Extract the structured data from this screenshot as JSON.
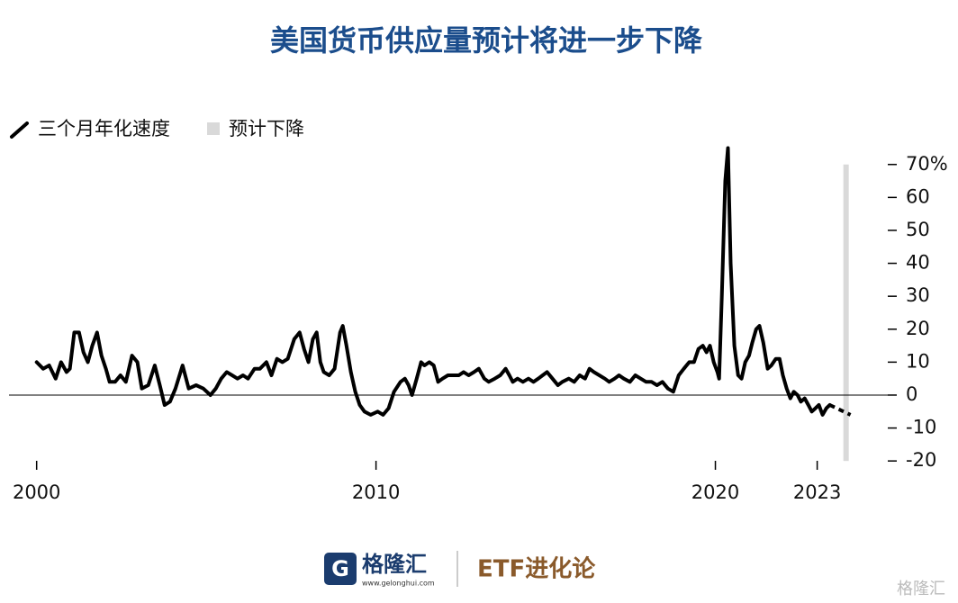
{
  "chart_data": {
    "type": "line",
    "title": "美国货币供应量预计将进一步下降",
    "series": [
      {
        "name": "三个月年化速度",
        "color": "#000000",
        "x": [
          2000.0,
          2000.19,
          2000.37,
          2000.56,
          2000.72,
          2000.88,
          2000.98,
          2001.11,
          2001.25,
          2001.38,
          2001.51,
          2001.64,
          2001.78,
          2001.91,
          2002.04,
          2002.15,
          2002.31,
          2002.47,
          2002.63,
          2002.81,
          2002.97,
          2003.1,
          2003.29,
          2003.48,
          2003.63,
          2003.77,
          2003.93,
          2004.09,
          2004.3,
          2004.48,
          2004.7,
          2004.91,
          2005.12,
          2005.28,
          2005.44,
          2005.6,
          2005.76,
          2005.92,
          2006.08,
          2006.23,
          2006.42,
          2006.58,
          2006.77,
          2006.92,
          2007.08,
          2007.24,
          2007.4,
          2007.59,
          2007.75,
          2007.88,
          2008.01,
          2008.14,
          2008.25,
          2008.36,
          2008.46,
          2008.62,
          2008.78,
          2008.94,
          2009.02,
          2009.13,
          2009.26,
          2009.39,
          2009.52,
          2009.66,
          2009.84,
          2010.05,
          2010.21,
          2010.37,
          2010.53,
          2010.72,
          2010.85,
          2010.96,
          2011.06,
          2011.2,
          2011.33,
          2011.43,
          2011.57,
          2011.7,
          2011.83,
          2011.96,
          2012.12,
          2012.28,
          2012.44,
          2012.58,
          2012.73,
          2012.89,
          2013.03,
          2013.19,
          2013.32,
          2013.5,
          2013.66,
          2013.82,
          2013.93,
          2014.03,
          2014.17,
          2014.33,
          2014.49,
          2014.64,
          2014.78,
          2014.91,
          2015.04,
          2015.2,
          2015.36,
          2015.49,
          2015.68,
          2015.84,
          2016.0,
          2016.16,
          2016.29,
          2016.42,
          2016.58,
          2016.74,
          2016.87,
          2017.03,
          2017.16,
          2017.3,
          2017.48,
          2017.64,
          2017.8,
          2017.96,
          2018.12,
          2018.28,
          2018.44,
          2018.6,
          2018.76,
          2018.92,
          2019.07,
          2019.23,
          2019.37,
          2019.5,
          2019.63,
          2019.74,
          2019.84,
          2019.95,
          2020.06,
          2020.11,
          2020.19,
          2020.29,
          2020.37,
          2020.45,
          2020.56,
          2020.67,
          2020.77,
          2020.88,
          2020.99,
          2021.09,
          2021.2,
          2021.3,
          2021.41,
          2021.54,
          2021.65,
          2021.78,
          2021.89,
          2021.99,
          2022.1,
          2022.21,
          2022.31,
          2022.42,
          2022.52,
          2022.63,
          2022.74,
          2022.84,
          2022.95,
          2023.05,
          2023.16,
          2023.27,
          2023.37
        ],
        "values": [
          10,
          8,
          9,
          5,
          10,
          7,
          8,
          19,
          19,
          13,
          10,
          15,
          19,
          12,
          8,
          4,
          4,
          6,
          4,
          12,
          10,
          2,
          3,
          9,
          3,
          -3,
          -2,
          2,
          9,
          2,
          3,
          2,
          0,
          2,
          5,
          7,
          6,
          5,
          6,
          5,
          8,
          8,
          10,
          6,
          11,
          10,
          11,
          17,
          19,
          14,
          10,
          17,
          19,
          10,
          7,
          6,
          8,
          19,
          21,
          15,
          7,
          1,
          -3,
          -5,
          -6,
          -5,
          -6,
          -4,
          1,
          4,
          5,
          3,
          0,
          5,
          10,
          9,
          10,
          9,
          4,
          5,
          6,
          6,
          6,
          7,
          6,
          7,
          8,
          5,
          4,
          5,
          6,
          8,
          6,
          4,
          5,
          4,
          5,
          4,
          5,
          6,
          7,
          5,
          3,
          4,
          5,
          4,
          6,
          5,
          8,
          7,
          6,
          5,
          4,
          5,
          6,
          5,
          4,
          6,
          5,
          4,
          4,
          3,
          4,
          2,
          1,
          6,
          8,
          10,
          10,
          14,
          15,
          13,
          15,
          10,
          7,
          5,
          30,
          65,
          75,
          40,
          15,
          6,
          5,
          10,
          12,
          16,
          20,
          21,
          16,
          8,
          9,
          11,
          11,
          6,
          2,
          -1,
          1,
          0,
          -2,
          -1,
          -3,
          -5,
          -4,
          -3,
          -6,
          -4,
          -3
        ]
      }
    ],
    "projection": {
      "x": [
        2023.37,
        2023.98
      ],
      "values": [
        -3,
        -6
      ]
    },
    "forecast": {
      "name": "预计下降",
      "color": "#d9d9d9",
      "x": 2023.85,
      "low": -20,
      "high": 70
    },
    "xlim": [
      1999,
      2025
    ],
    "xticks": [
      2000,
      2010,
      2020,
      2023
    ],
    "ylim": [
      -22,
      76
    ],
    "yticks": [
      -20,
      -10,
      0,
      10,
      20,
      30,
      40,
      50,
      60,
      {
        "value": 70,
        "label": "70%"
      }
    ],
    "zero_line": true
  },
  "footer": {
    "brand": "格隆汇",
    "url": "www.gelonghui.com",
    "channel": "ETF进化论",
    "watermark": "格隆汇"
  }
}
